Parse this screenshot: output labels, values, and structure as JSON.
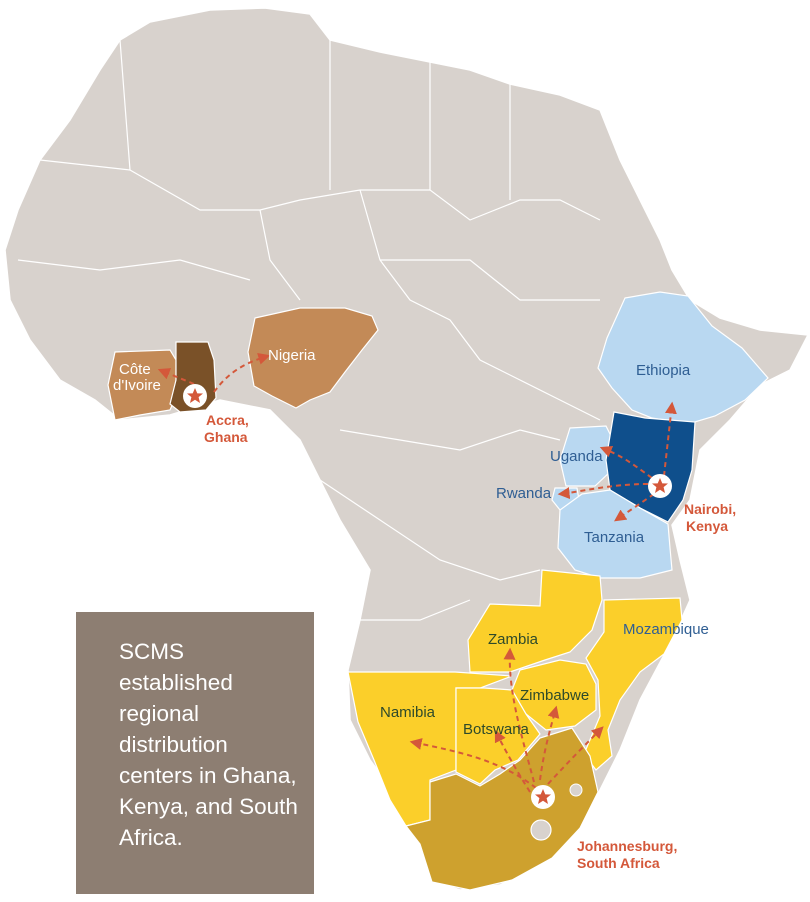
{
  "colors": {
    "land": "#d8d2cd",
    "west_light": "#c38a57",
    "west_hub": "#7a5128",
    "east_light": "#b9d8f1",
    "east_hub": "#0f4f8c",
    "south_light": "#fbcf2a",
    "south_hub": "#cea12e",
    "arrow": "#d4583a",
    "box": "#8d7e72"
  },
  "countries": {
    "cote_divoire": "Côte d'Ivoire",
    "nigeria": "Nigeria",
    "ethiopia": "Ethiopia",
    "uganda": "Uganda",
    "rwanda": "Rwanda",
    "tanzania": "Tanzania",
    "zambia": "Zambia",
    "mozambique": "Mozambique",
    "namibia": "Namibia",
    "botswana": "Botswana",
    "zimbabwe": "Zimbabwe"
  },
  "hubs": {
    "accra_line1": "Accra,",
    "accra_line2": "Ghana",
    "nairobi_line1": "Nairobi,",
    "nairobi_line2": "Kenya",
    "johannesburg_line1": "Johannesburg,",
    "johannesburg_line2": "South Africa"
  },
  "note": "SCMS established regional distribution centers in Ghana, Kenya, and South Africa.",
  "icons": {
    "hub_marker": "star-in-circle-icon"
  }
}
